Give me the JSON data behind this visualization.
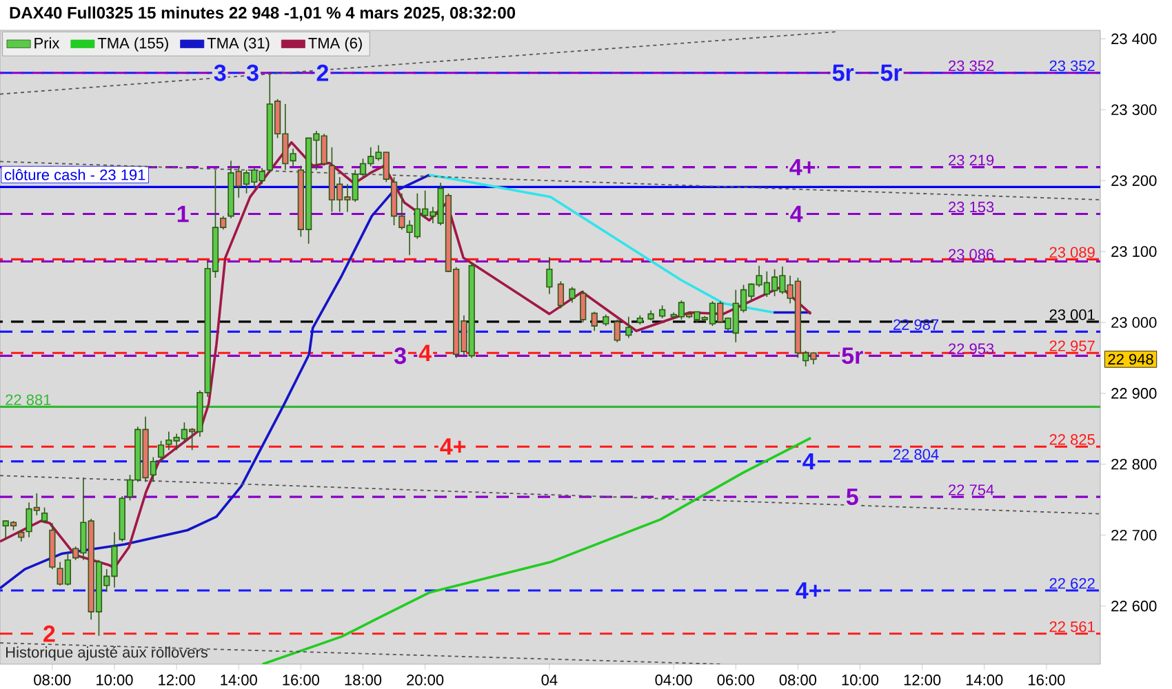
{
  "chart_data": {
    "type": "candlestick",
    "title": "DAX40 Full0325 15 minutes 22 948 -1,01 % 4 mars 2025, 08:32:00",
    "legend": "top left",
    "xlim": [
      "2025-03-03T06:19",
      "2025-03-04T17:44"
    ],
    "xticks": [
      {
        "value": "2025-03-03T08:00",
        "label": "08:00"
      },
      {
        "value": "2025-03-03T10:00",
        "label": "10:00"
      },
      {
        "value": "2025-03-03T12:00",
        "label": "12:00"
      },
      {
        "value": "2025-03-03T14:00",
        "label": "14:00"
      },
      {
        "value": "2025-03-03T16:00",
        "label": "16:00"
      },
      {
        "value": "2025-03-03T18:00",
        "label": "18:00"
      },
      {
        "value": "2025-03-03T20:00",
        "label": "20:00"
      },
      {
        "value": "2025-03-04T00:00",
        "label": "04"
      },
      {
        "value": "2025-03-04T04:00",
        "label": "04:00"
      },
      {
        "value": "2025-03-04T06:00",
        "label": "06:00"
      },
      {
        "value": "2025-03-04T08:00",
        "label": "08:00"
      },
      {
        "value": "2025-03-04T10:00",
        "label": "10:00"
      },
      {
        "value": "2025-03-04T12:00",
        "label": "12:00"
      },
      {
        "value": "2025-03-04T14:00",
        "label": "14:00"
      },
      {
        "value": "2025-03-04T16:00",
        "label": "16:00"
      }
    ],
    "ylim": [
      22518,
      23412
    ],
    "yticks": [
      {
        "value": 22600,
        "label": "22 600"
      },
      {
        "value": 22700,
        "label": "22 700"
      },
      {
        "value": 22800,
        "label": "22 800"
      },
      {
        "value": 22900,
        "label": "22 900"
      },
      {
        "value": 23000,
        "label": "23 000"
      },
      {
        "value": 23100,
        "label": "23 100"
      },
      {
        "value": 23200,
        "label": "23 200"
      },
      {
        "value": 23300,
        "label": "23 300"
      },
      {
        "value": 23400,
        "label": "23 400"
      }
    ],
    "series": [
      {
        "name": "Prix",
        "type": "candlestick",
        "colors": [
          "#5cc94a",
          "#e8766d",
          "#e8766d",
          "#5cc94a",
          "#e8766d",
          "#5cc94a",
          "#e8766d",
          "#e8766d",
          "#5cc94a",
          "#e8766d",
          "#5cc94a",
          "#e8766d",
          "#5cc94a",
          "#5cc94a",
          "#5cc94a",
          "#5cc94a",
          "#5cc94a",
          "#5cc94a",
          "#e8766d",
          "#5cc94a",
          "#5cc94a",
          "#5cc94a",
          "#5cc94a",
          "#5cc94a",
          "#e8766d",
          "#5cc94a",
          "#5cc94a",
          "#5cc94a",
          "#e8766d",
          "#5cc94a",
          "#e8766d",
          "#5cc94a",
          "#5cc94a",
          "#5cc94a",
          "#5cc94a",
          "#e8766d",
          "#e8766d",
          "#5cc94a",
          "#e8766d",
          "#5cc94a",
          "#5cc94a",
          "#e8766d",
          "#e8766d",
          "#e8766d",
          "#e8766d",
          "#5cc94a",
          "#5cc94a",
          "#5cc94a",
          "#5cc94a",
          "#e8766d",
          "#e8766d",
          "#e8766d",
          "#5cc94a",
          "#5cc94a",
          "#5cc94a",
          "#5cc94a",
          "#5cc94a",
          "#e8766d",
          "#e8766d",
          "#e8766d",
          "#5cc94a",
          "#5cc94a",
          "#e8766d",
          "#5cc94a",
          "#e8766d",
          "#e8766d",
          "#5cc94a",
          "#e8766d",
          "#5cc94a",
          "#5cc94a",
          "#5cc94a",
          "#5cc94a",
          "#5cc94a",
          "#5cc94a",
          "#e8766d",
          "#5cc94a",
          "#5cc94a",
          "#5cc94a",
          "#e8766d",
          "#5cc94a",
          "#5cc94a",
          "#5cc94a",
          "#5cc94a",
          "#5cc94a",
          "#5cc94a",
          "#5cc94a",
          "#5cc94a",
          "#e8766d",
          "#e8766d",
          "#5cc94a",
          "#e8766d"
        ],
        "x": [
          "2025-03-03T06:30",
          "2025-03-03T06:45",
          "2025-03-03T07:00",
          "2025-03-03T07:15",
          "2025-03-03T07:30",
          "2025-03-03T07:45",
          "2025-03-03T08:00",
          "2025-03-03T08:15",
          "2025-03-03T08:30",
          "2025-03-03T08:45",
          "2025-03-03T09:00",
          "2025-03-03T09:15",
          "2025-03-03T09:30",
          "2025-03-03T09:45",
          "2025-03-03T10:00",
          "2025-03-03T10:15",
          "2025-03-03T10:30",
          "2025-03-03T10:45",
          "2025-03-03T11:00",
          "2025-03-03T11:15",
          "2025-03-03T11:30",
          "2025-03-03T11:45",
          "2025-03-03T12:00",
          "2025-03-03T12:15",
          "2025-03-03T12:30",
          "2025-03-03T12:45",
          "2025-03-03T13:00",
          "2025-03-03T13:15",
          "2025-03-03T13:30",
          "2025-03-03T13:45",
          "2025-03-03T14:00",
          "2025-03-03T14:15",
          "2025-03-03T14:30",
          "2025-03-03T14:45",
          "2025-03-03T15:00",
          "2025-03-03T15:15",
          "2025-03-03T15:30",
          "2025-03-03T15:45",
          "2025-03-03T16:00",
          "2025-03-03T16:15",
          "2025-03-03T16:30",
          "2025-03-03T16:45",
          "2025-03-03T17:00",
          "2025-03-03T17:15",
          "2025-03-03T17:30",
          "2025-03-03T17:45",
          "2025-03-03T18:00",
          "2025-03-03T18:15",
          "2025-03-03T18:30",
          "2025-03-03T18:45",
          "2025-03-03T19:00",
          "2025-03-03T19:15",
          "2025-03-03T19:30",
          "2025-03-03T19:45",
          "2025-03-03T20:00",
          "2025-03-03T20:15",
          "2025-03-03T20:30",
          "2025-03-03T20:45",
          "2025-03-03T21:00",
          "2025-03-03T21:15",
          "2025-03-03T21:30",
          "2025-03-04T00:00",
          "2025-03-04T00:22",
          "2025-03-04T00:44",
          "2025-03-04T01:05",
          "2025-03-04T01:27",
          "2025-03-04T01:49",
          "2025-03-04T02:11",
          "2025-03-04T02:33",
          "2025-03-04T02:55",
          "2025-03-04T03:16",
          "2025-03-04T03:38",
          "2025-03-04T04:00",
          "2025-03-04T04:15",
          "2025-03-04T04:30",
          "2025-03-04T04:45",
          "2025-03-04T05:00",
          "2025-03-04T05:15",
          "2025-03-04T05:30",
          "2025-03-04T05:45",
          "2025-03-04T06:00",
          "2025-03-04T06:15",
          "2025-03-04T06:30",
          "2025-03-04T06:45",
          "2025-03-04T07:00",
          "2025-03-04T07:15",
          "2025-03-04T07:30",
          "2025-03-04T07:45",
          "2025-03-04T08:00",
          "2025-03-04T08:15",
          "2025-03-04T08:30"
        ],
        "ohlc": [
          [
            22713,
            22721,
            22694,
            22720
          ],
          [
            22718,
            22720,
            22707,
            22713
          ],
          [
            22704,
            22707,
            22691,
            22697
          ],
          [
            22705,
            22746,
            22697,
            22737
          ],
          [
            22739,
            22759,
            22728,
            22735
          ],
          [
            22720,
            22739,
            22717,
            22731
          ],
          [
            22707,
            22717,
            22652,
            22655
          ],
          [
            22653,
            22662,
            22629,
            22631
          ],
          [
            22631,
            22675,
            22629,
            22665
          ],
          [
            22681,
            22684,
            22665,
            22668
          ],
          [
            22675,
            22781,
            22665,
            22718
          ],
          [
            22720,
            22723,
            22581,
            22592
          ],
          [
            22592,
            22665,
            22558,
            22662
          ],
          [
            22629,
            22652,
            22620,
            22642
          ],
          [
            22642,
            22704,
            22626,
            22684
          ],
          [
            22694,
            22755,
            22691,
            22752
          ],
          [
            22754,
            22785,
            22749,
            22778
          ],
          [
            22778,
            22853,
            22775,
            22849
          ],
          [
            22849,
            22867,
            22775,
            22781
          ],
          [
            22785,
            22810,
            22775,
            22804
          ],
          [
            22810,
            22833,
            22804,
            22827
          ],
          [
            22828,
            22846,
            22820,
            22834
          ],
          [
            22833,
            22843,
            22820,
            22838
          ],
          [
            22836,
            22859,
            22830,
            22849
          ],
          [
            22849,
            22851,
            22820,
            22846
          ],
          [
            22846,
            22904,
            22839,
            22901
          ],
          [
            22901,
            23086,
            22895,
            23076
          ],
          [
            23072,
            23215,
            23063,
            23134
          ],
          [
            23147,
            23150,
            23131,
            23134
          ],
          [
            23150,
            23228,
            23147,
            23211
          ],
          [
            23213,
            23221,
            23176,
            23192
          ],
          [
            23195,
            23215,
            23182,
            23211
          ],
          [
            23198,
            23218,
            23189,
            23215
          ],
          [
            23200,
            23218,
            23195,
            23213
          ],
          [
            23215,
            23350,
            23211,
            23308
          ],
          [
            23312,
            23315,
            23260,
            23266
          ],
          [
            23266,
            23308,
            23215,
            23224
          ],
          [
            23228,
            23245,
            23220,
            23238
          ],
          [
            23215,
            23221,
            23121,
            23131
          ],
          [
            23131,
            23260,
            23111,
            23260
          ],
          [
            23257,
            23270,
            23215,
            23266
          ],
          [
            23263,
            23266,
            23221,
            23224
          ],
          [
            23221,
            23247,
            23156,
            23173
          ],
          [
            23195,
            23205,
            23156,
            23173
          ],
          [
            23177,
            23195,
            23156,
            23173
          ],
          [
            23173,
            23215,
            23170,
            23209
          ],
          [
            23209,
            23231,
            23205,
            23224
          ],
          [
            23224,
            23247,
            23220,
            23234
          ],
          [
            23231,
            23250,
            23228,
            23240
          ],
          [
            23240,
            23240,
            23198,
            23202
          ],
          [
            23198,
            23205,
            23137,
            23150
          ],
          [
            23150,
            23182,
            23131,
            23134
          ],
          [
            23127,
            23144,
            23095,
            23137
          ],
          [
            23121,
            23182,
            23118,
            23160
          ],
          [
            23151,
            23186,
            23147,
            23160
          ],
          [
            23150,
            23163,
            23140,
            23156
          ],
          [
            23140,
            23197,
            23137,
            23189
          ],
          [
            23179,
            23182,
            23071,
            23072
          ],
          [
            23075,
            23078,
            22950,
            22955
          ],
          [
            23002,
            23010,
            22953,
            22959
          ],
          [
            22953,
            23085,
            22950,
            23080
          ],
          [
            23050,
            23092,
            23040,
            23075
          ],
          [
            23054,
            23058,
            23020,
            23024
          ],
          [
            23034,
            23050,
            23028,
            23047
          ],
          [
            23041,
            23045,
            23000,
            23004
          ],
          [
            23013,
            23015,
            22988,
            22995
          ],
          [
            22998,
            23011,
            22995,
            23008
          ],
          [
            23001,
            23004,
            22972,
            22975
          ],
          [
            22982,
            23008,
            22978,
            22993
          ],
          [
            23000,
            23010,
            22997,
            23006
          ],
          [
            23005,
            23017,
            23003,
            23012
          ],
          [
            23009,
            23024,
            23006,
            23018
          ],
          [
            23008,
            23014,
            23006,
            23011
          ],
          [
            23008,
            23031,
            23004,
            23028
          ],
          [
            23012,
            23015,
            23006,
            23008
          ],
          [
            23004,
            23015,
            23000,
            23015
          ],
          [
            23004,
            23009,
            23001,
            23007
          ],
          [
            22998,
            23030,
            22995,
            23027
          ],
          [
            23027,
            23030,
            22999,
            23001
          ],
          [
            22991,
            23007,
            22988,
            23006
          ],
          [
            22985,
            23046,
            22972,
            23027
          ],
          [
            23017,
            23053,
            23014,
            23046
          ],
          [
            23037,
            23055,
            23030,
            23054
          ],
          [
            23053,
            23080,
            23050,
            23066
          ],
          [
            23040,
            23072,
            23036,
            23056
          ],
          [
            23045,
            23075,
            23037,
            23064
          ],
          [
            23043,
            23079,
            23040,
            23066
          ],
          [
            23053,
            23066,
            23027,
            23034
          ],
          [
            23058,
            23063,
            22950,
            22957
          ],
          [
            22946,
            22960,
            22938,
            22957
          ],
          [
            22957,
            22958,
            22941,
            22948
          ]
        ]
      },
      {
        "name": "TMA (155)",
        "type": "line",
        "color": "#22cc22",
        "x": [
          "2025-03-03T14:46",
          "2025-03-03T17:19",
          "2025-03-03T18:24",
          "2025-03-03T20:08",
          "2025-03-04T00:02",
          "2025-03-04T03:34",
          "2025-03-04T06:14",
          "2025-03-04T08:25"
        ],
        "values": [
          22518,
          22557,
          22581,
          22619,
          22662,
          22722,
          22788,
          22837
        ]
      },
      {
        "name": "TMA (31)",
        "type": "line",
        "color": "#1414c8",
        "x": [
          "2025-03-03T06:19",
          "2025-03-03T07:07",
          "2025-03-03T08:19",
          "2025-03-03T10:20",
          "2025-03-03T12:21",
          "2025-03-03T13:17",
          "2025-03-03T14:05",
          "2025-03-03T15:28",
          "2025-03-03T16:16",
          "2025-03-03T16:23",
          "2025-03-03T17:19",
          "2025-03-03T18:17",
          "2025-03-03T18:56",
          "2025-03-03T20:08"
        ],
        "values": [
          22625,
          22652,
          22674,
          22687,
          22707,
          22726,
          22769,
          22885,
          22955,
          22992,
          23066,
          23150,
          23183,
          23208
        ]
      },
      {
        "type": "line",
        "color": "#30e4ec",
        "x": [
          "2025-03-03T20:08",
          "2025-03-03T20:56",
          "2025-03-04T00:02",
          "2025-03-04T02:24",
          "2025-03-04T04:14",
          "2025-03-04T05:36",
          "2025-03-04T07:13"
        ],
        "values": [
          23208,
          23202,
          23177,
          23111,
          23060,
          23027,
          23014
        ]
      },
      {
        "type": "line",
        "color": "#1414c8",
        "x": [
          "2025-03-04T07:13",
          "2025-03-04T08:25"
        ],
        "values": [
          23014,
          23014
        ]
      },
      {
        "name": "TMA (6)",
        "type": "line",
        "color": "#a01846",
        "x": [
          "2025-03-03T06:19",
          "2025-03-03T07:38",
          "2025-03-03T07:55",
          "2025-03-03T08:44",
          "2025-03-03T09:49",
          "2025-03-03T10:00",
          "2025-03-03T10:28",
          "2025-03-03T11:01",
          "2025-03-03T11:26",
          "2025-03-03T12:46",
          "2025-03-03T13:02",
          "2025-03-03T13:17",
          "2025-03-03T13:34",
          "2025-03-03T14:22",
          "2025-03-03T15:42",
          "2025-03-03T16:23",
          "2025-03-03T16:55",
          "2025-03-03T17:43",
          "2025-03-03T18:17",
          "2025-03-03T18:41",
          "2025-03-03T19:20",
          "2025-03-03T20:08",
          "2025-03-03T20:42",
          "2025-03-03T21:14",
          "2025-03-04T00:00",
          "2025-03-04T01:03",
          "2025-03-04T02:48",
          "2025-03-04T04:31",
          "2025-03-04T05:36",
          "2025-03-04T07:27",
          "2025-03-04T08:25"
        ],
        "values": [
          22691,
          22720,
          22717,
          22672,
          22658,
          22654,
          22683,
          22761,
          22804,
          22849,
          22885,
          22969,
          23091,
          23177,
          23254,
          23221,
          23225,
          23196,
          23212,
          23221,
          23169,
          23144,
          23169,
          23091,
          23012,
          23043,
          22988,
          23014,
          23012,
          23050,
          23012
        ]
      },
      {
        "type": "line",
        "line_style": "dotted",
        "color": "#555555",
        "x": [
          "2025-03-03T06:19",
          "2025-03-04T09:15"
        ],
        "values": [
          23322,
          23410
        ]
      },
      {
        "type": "line",
        "line_style": "dotted",
        "color": "#555555",
        "x": [
          "2025-03-03T06:19",
          "2025-03-04T17:44"
        ],
        "values": [
          23227,
          23173
        ]
      },
      {
        "type": "line",
        "line_style": "dotted",
        "color": "#555555",
        "x": [
          "2025-03-03T06:19",
          "2025-03-04T17:44"
        ],
        "values": [
          22784,
          22730
        ]
      },
      {
        "type": "line",
        "line_style": "dotted",
        "color": "#555555",
        "x": [
          "2025-03-03T06:19",
          "2025-03-04T05:36"
        ],
        "values": [
          22548,
          22518
        ]
      }
    ],
    "ref_lines": [
      {
        "axis": "y",
        "value": 23352,
        "label": "23 352",
        "color": "#1a1aff",
        "line_style": "dashed"
      },
      {
        "axis": "y",
        "value": 23352,
        "label": "23 352",
        "color": "#8a00c8",
        "line_style": "dashed"
      },
      {
        "axis": "y",
        "value": 23219,
        "label": "23 219",
        "color": "#8a00c8",
        "line_style": "dashed"
      },
      {
        "axis": "y",
        "value": 23191,
        "label": "clôture cash -  23 191",
        "color": "#0000ee",
        "line_style": "solid"
      },
      {
        "axis": "y",
        "value": 23153,
        "label": "23 153",
        "color": "#8a00c8",
        "line_style": "dashed"
      },
      {
        "axis": "y",
        "value": 23089,
        "label": "23 089",
        "color": "#ff1a1a",
        "line_style": "dashed"
      },
      {
        "axis": "y",
        "value": 23086,
        "label": "23 086",
        "color": "#8a00c8",
        "line_style": "dashed"
      },
      {
        "axis": "y",
        "value": 23001,
        "label": "23 001",
        "color": "#000000",
        "line_style": "dashed"
      },
      {
        "axis": "y",
        "value": 22987,
        "label": "22 987",
        "color": "#1a1aff",
        "line_style": "dashed"
      },
      {
        "axis": "y",
        "value": 22957,
        "label": "22 957",
        "color": "#ff1a1a",
        "line_style": "dashed"
      },
      {
        "axis": "y",
        "value": 22953,
        "label": "22 953",
        "color": "#8a00c8",
        "line_style": "dashed"
      },
      {
        "axis": "y",
        "value": 22881,
        "label": "22 881",
        "color": "#33b833",
        "line_style": "solid"
      },
      {
        "axis": "y",
        "value": 22825,
        "label": "22 825",
        "color": "#ff1a1a",
        "line_style": "dashed"
      },
      {
        "axis": "y",
        "value": 22804,
        "label": "22 804",
        "color": "#1a1aff",
        "line_style": "dashed"
      },
      {
        "axis": "y",
        "value": 22754,
        "label": "22 754",
        "color": "#8a00c8",
        "line_style": "dashed"
      },
      {
        "axis": "y",
        "value": 22622,
        "label": "22 622",
        "color": "#1a1aff",
        "line_style": "dashed"
      },
      {
        "axis": "y",
        "value": 22561,
        "label": "22 561",
        "color": "#ff1a1a",
        "line_style": "dashed"
      }
    ],
    "annotations": [
      {
        "text": "3",
        "x": "2025-03-03T13:24",
        "y": 23352
      },
      {
        "text": "3",
        "x": "2025-03-03T14:27",
        "y": 23352
      },
      {
        "text": "2",
        "x": "2025-03-03T16:42",
        "y": 23352
      },
      {
        "text": "1",
        "x": "2025-03-03T12:12",
        "y": 23153
      },
      {
        "text": "3",
        "x": "2025-03-03T19:12",
        "y": 22953
      },
      {
        "text": "4",
        "x": "2025-03-03T20:00",
        "y": 22957
      },
      {
        "text": "5r",
        "x": "2025-03-04T09:27",
        "y": 23352
      },
      {
        "text": "5r",
        "x": "2025-03-04T11:00",
        "y": 23352
      },
      {
        "text": "4+",
        "x": "2025-03-04T08:09",
        "y": 23219
      },
      {
        "text": "4",
        "x": "2025-03-04T07:57",
        "y": 23153
      },
      {
        "text": "4+",
        "x": "2025-03-03T20:54",
        "y": 22825
      },
      {
        "text": "4",
        "x": "2025-03-04T08:21",
        "y": 22804
      },
      {
        "text": "5r",
        "x": "2025-03-04T09:45",
        "y": 22953
      },
      {
        "text": "5",
        "x": "2025-03-04T09:45",
        "y": 22754
      },
      {
        "text": "4+",
        "x": "2025-03-04T08:21",
        "y": 22622
      },
      {
        "text": "2",
        "x": "2025-03-03T07:54",
        "y": 22561
      },
      "22 948",
      "Historique ajusté aux rollovers"
    ]
  }
}
